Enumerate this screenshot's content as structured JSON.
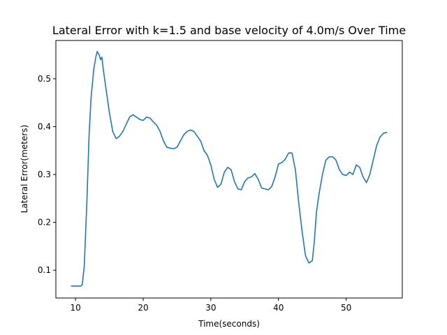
{
  "chart_data": {
    "type": "line",
    "title": "Lateral Error with k=1.5 and base velocity of 4.0m/s Over Time",
    "xlabel": "Time(seconds)",
    "ylabel": "Lateral Error(meters)",
    "xlim": [
      7.1,
      58.3
    ],
    "ylim": [
      0.042,
      0.58
    ],
    "x_ticks": [
      10,
      20,
      30,
      40,
      50
    ],
    "y_ticks": [
      0.1,
      0.2,
      0.3,
      0.4,
      0.5
    ],
    "grid": false,
    "colors": {
      "series": "#1f77b4"
    },
    "series": [
      {
        "x": [
          9.4,
          10.0,
          10.8,
          11.0,
          11.3,
          11.7,
          12.0,
          12.3,
          12.7,
          13.0,
          13.2,
          13.5,
          13.7,
          13.9,
          14.1,
          14.5,
          15.0,
          15.5,
          16.0,
          16.5,
          17.0,
          17.5,
          18.0,
          18.5,
          19.0,
          19.5,
          20.0,
          20.5,
          21.0,
          21.5,
          22.0,
          22.5,
          23.0,
          23.5,
          24.0,
          24.5,
          25.0,
          25.5,
          26.0,
          26.5,
          27.0,
          27.5,
          28.0,
          28.5,
          29.0,
          29.5,
          30.0,
          30.5,
          31.0,
          31.5,
          32.0,
          32.5,
          33.0,
          33.5,
          34.0,
          34.5,
          35.0,
          35.5,
          36.0,
          36.5,
          37.0,
          37.5,
          38.0,
          38.5,
          39.0,
          39.5,
          40.0,
          40.5,
          41.0,
          41.5,
          42.0,
          42.5,
          43.0,
          43.5,
          44.0,
          44.5,
          45.0,
          45.3,
          45.6,
          46.0,
          46.5,
          47.0,
          47.5,
          48.0,
          48.5,
          49.0,
          49.5,
          50.0,
          50.5,
          51.0,
          51.5,
          52.0,
          52.5,
          53.0,
          53.5,
          54.0,
          54.5,
          55.0,
          55.5,
          56.0
        ],
        "y": [
          0.067,
          0.067,
          0.067,
          0.07,
          0.11,
          0.25,
          0.38,
          0.46,
          0.52,
          0.545,
          0.557,
          0.55,
          0.54,
          0.545,
          0.52,
          0.48,
          0.43,
          0.39,
          0.375,
          0.38,
          0.39,
          0.405,
          0.42,
          0.425,
          0.42,
          0.415,
          0.413,
          0.42,
          0.418,
          0.41,
          0.403,
          0.39,
          0.37,
          0.357,
          0.355,
          0.354,
          0.357,
          0.37,
          0.383,
          0.39,
          0.393,
          0.39,
          0.38,
          0.37,
          0.35,
          0.34,
          0.32,
          0.29,
          0.273,
          0.28,
          0.305,
          0.315,
          0.31,
          0.285,
          0.27,
          0.268,
          0.285,
          0.293,
          0.295,
          0.302,
          0.29,
          0.272,
          0.27,
          0.268,
          0.275,
          0.295,
          0.322,
          0.325,
          0.332,
          0.345,
          0.345,
          0.31,
          0.24,
          0.18,
          0.13,
          0.115,
          0.12,
          0.16,
          0.22,
          0.26,
          0.3,
          0.33,
          0.337,
          0.337,
          0.33,
          0.31,
          0.3,
          0.298,
          0.305,
          0.3,
          0.32,
          0.315,
          0.295,
          0.283,
          0.3,
          0.33,
          0.36,
          0.378,
          0.386,
          0.388
        ]
      }
    ]
  }
}
